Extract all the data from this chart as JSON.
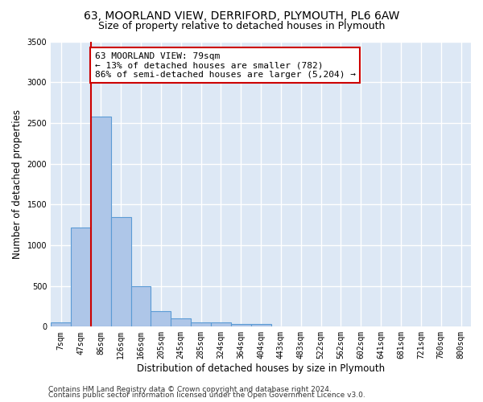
{
  "title1": "63, MOORLAND VIEW, DERRIFORD, PLYMOUTH, PL6 6AW",
  "title2": "Size of property relative to detached houses in Plymouth",
  "xlabel": "Distribution of detached houses by size in Plymouth",
  "ylabel": "Number of detached properties",
  "categories": [
    "7sqm",
    "47sqm",
    "86sqm",
    "126sqm",
    "166sqm",
    "205sqm",
    "245sqm",
    "285sqm",
    "324sqm",
    "364sqm",
    "404sqm",
    "443sqm",
    "483sqm",
    "522sqm",
    "562sqm",
    "602sqm",
    "641sqm",
    "681sqm",
    "721sqm",
    "760sqm",
    "800sqm"
  ],
  "values": [
    50,
    1220,
    2580,
    1340,
    500,
    190,
    100,
    50,
    50,
    30,
    30,
    0,
    0,
    0,
    0,
    0,
    0,
    0,
    0,
    0,
    0
  ],
  "bar_color": "#aec6e8",
  "bar_edge_color": "#5b9bd5",
  "vline_x_idx": 2,
  "vline_color": "#cc0000",
  "annotation_text": "63 MOORLAND VIEW: 79sqm\n← 13% of detached houses are smaller (782)\n86% of semi-detached houses are larger (5,204) →",
  "annotation_box_color": "#ffffff",
  "annotation_box_edge": "#cc0000",
  "ylim": [
    0,
    3500
  ],
  "yticks": [
    0,
    500,
    1000,
    1500,
    2000,
    2500,
    3000,
    3500
  ],
  "bg_color": "#dde8f5",
  "grid_color": "#ffffff",
  "footer1": "Contains HM Land Registry data © Crown copyright and database right 2024.",
  "footer2": "Contains public sector information licensed under the Open Government Licence v3.0.",
  "title_fontsize": 10,
  "subtitle_fontsize": 9,
  "axis_label_fontsize": 8.5,
  "tick_fontsize": 7,
  "annotation_fontsize": 8,
  "footer_fontsize": 6.5
}
